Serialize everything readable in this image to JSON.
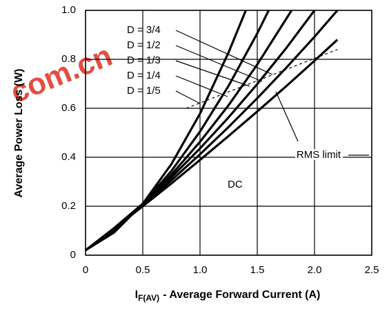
{
  "chart_data": {
    "type": "line",
    "xlabel_symbol": "I",
    "xlabel_subscript": "F(AV)",
    "xlabel": "- Average Forward Current (A)",
    "ylabel": "Average Power Loss (W)",
    "watermark": "com.cn",
    "xlim": [
      0,
      2.5
    ],
    "ylim": [
      0,
      1
    ],
    "xticks": [
      0,
      0.5,
      {
        "value": 1,
        "label": "1.0"
      },
      1.5,
      {
        "value": 2,
        "label": "2.0"
      },
      2.5
    ],
    "yticks": [
      0,
      0.2,
      0.4,
      0.6,
      0.8,
      {
        "value": 1,
        "label": "1.0"
      }
    ],
    "grid": true,
    "series": [
      {
        "name": "D = 3/4",
        "color": "#000000",
        "x": [
          0,
          0.25,
          0.5,
          0.75,
          1,
          1.25,
          1.4
        ],
        "values": [
          0.02,
          0.093,
          0.21,
          0.372,
          0.578,
          0.829,
          1.0
        ]
      },
      {
        "name": "D = 1/2",
        "color": "#000000",
        "x": [
          0,
          0.25,
          0.5,
          0.75,
          1,
          1.25,
          1.5,
          1.6
        ],
        "values": [
          0.02,
          0.102,
          0.21,
          0.344,
          0.505,
          0.692,
          0.906,
          1.0
        ]
      },
      {
        "name": "D = 1/3",
        "color": "#000000",
        "x": [
          0,
          0.25,
          0.5,
          0.75,
          1,
          1.25,
          1.5,
          1.8
        ],
        "values": [
          0.02,
          0.107,
          0.21,
          0.329,
          0.463,
          0.613,
          0.779,
          1.0
        ]
      },
      {
        "name": "D = 1/4",
        "color": "#000000",
        "x": [
          0,
          0.25,
          0.5,
          0.75,
          1,
          1.25,
          1.5,
          1.75,
          2
        ],
        "values": [
          0.02,
          0.111,
          0.21,
          0.318,
          0.436,
          0.563,
          0.699,
          0.844,
          1.0
        ]
      },
      {
        "name": "D = 1/5",
        "color": "#000000",
        "x": [
          0,
          0.25,
          0.5,
          0.75,
          1,
          1.25,
          1.5,
          1.75,
          2,
          2.2
        ],
        "values": [
          0.02,
          0.11,
          0.205,
          0.306,
          0.412,
          0.524,
          0.641,
          0.764,
          0.892,
          1.0
        ]
      },
      {
        "name": "DC",
        "color": "#000000",
        "x": [
          0,
          0.25,
          0.5,
          0.75,
          1,
          1.25,
          1.5,
          1.75,
          2,
          2.2
        ],
        "values": [
          0.02,
          0.109,
          0.2,
          0.293,
          0.389,
          0.487,
          0.587,
          0.689,
          0.794,
          0.88
        ]
      },
      {
        "name": "RMS limit",
        "color": "#000000",
        "dash": true,
        "x": [
          0.88,
          2.2
        ],
        "values": [
          0.6,
          0.84
        ]
      }
    ]
  }
}
